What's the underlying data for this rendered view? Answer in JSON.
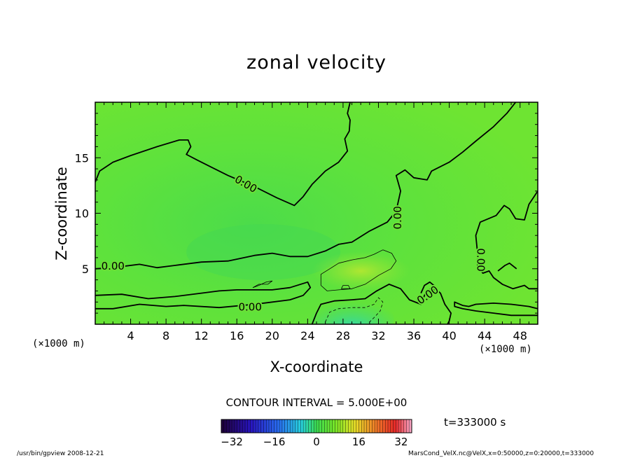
{
  "chart_data": {
    "type": "contour",
    "title": "zonal velocity",
    "xlabel": "X-coordinate",
    "ylabel": "Z-coordinate",
    "x_unit": "(×1000 m)",
    "y_unit": "(×1000 m)",
    "xlim": [
      0,
      50
    ],
    "ylim": [
      0,
      20
    ],
    "xticks": [
      4,
      8,
      12,
      16,
      20,
      24,
      28,
      32,
      36,
      40,
      44,
      48
    ],
    "yticks": [
      5,
      10,
      15
    ],
    "contour_interval_label": "CONTOUR INTERVAL = 5.000E+00",
    "contour_labels": [
      "0.00",
      "0.00",
      "0.00",
      "0.00",
      "0.00",
      "0.00"
    ],
    "contours": [
      {
        "level": 0,
        "points": [
          [
            0,
            12.8
          ],
          [
            0.5,
            13.8
          ],
          [
            2,
            14.6
          ],
          [
            4,
            15.2
          ],
          [
            7,
            16.0
          ],
          [
            9.5,
            16.6
          ],
          [
            10.5,
            16.6
          ],
          [
            10.8,
            16.0
          ],
          [
            10.3,
            15.3
          ],
          [
            11.5,
            14.8
          ],
          [
            13,
            14.2
          ],
          [
            15,
            13.4
          ],
          [
            18,
            12.4
          ],
          [
            20.5,
            11.4
          ],
          [
            22.5,
            10.7
          ],
          [
            23.5,
            11.5
          ],
          [
            24.5,
            12.6
          ],
          [
            26,
            13.8
          ],
          [
            27.5,
            14.6
          ],
          [
            28.5,
            15.6
          ],
          [
            28.2,
            16.7
          ],
          [
            28.7,
            17.4
          ],
          [
            28.8,
            18.4
          ],
          [
            28.5,
            19.0
          ],
          [
            28.8,
            20.0
          ]
        ]
      },
      {
        "level": 0,
        "points": [
          [
            0,
            5.0
          ],
          [
            2,
            5.1
          ],
          [
            5,
            5.4
          ],
          [
            7,
            5.1
          ],
          [
            9,
            5.3
          ],
          [
            12,
            5.6
          ],
          [
            15,
            5.7
          ],
          [
            18,
            6.2
          ],
          [
            20,
            6.4
          ],
          [
            22,
            6.1
          ],
          [
            24,
            6.1
          ],
          [
            26,
            6.6
          ],
          [
            27.5,
            7.2
          ],
          [
            29,
            7.4
          ],
          [
            31,
            8.4
          ],
          [
            33,
            9.2
          ],
          [
            34,
            10.2
          ],
          [
            34.5,
            12.0
          ],
          [
            34,
            13.4
          ],
          [
            35,
            13.9
          ],
          [
            36,
            13.2
          ],
          [
            37.5,
            13.0
          ],
          [
            38,
            13.8
          ],
          [
            40,
            14.6
          ],
          [
            41.5,
            15.5
          ],
          [
            43,
            16.5
          ],
          [
            45,
            17.8
          ],
          [
            46.5,
            19.0
          ],
          [
            47.5,
            20.0
          ]
        ]
      },
      {
        "level": 0,
        "points": [
          [
            50,
            12.0
          ],
          [
            49,
            10.8
          ],
          [
            48.5,
            9.4
          ],
          [
            47.5,
            9.5
          ],
          [
            46.8,
            10.4
          ],
          [
            46.2,
            10.7
          ],
          [
            45.3,
            9.8
          ],
          [
            43.5,
            9.2
          ],
          [
            43,
            8.0
          ],
          [
            43.2,
            6.4
          ],
          [
            43.2,
            5.2
          ],
          [
            43.8,
            4.6
          ],
          [
            44.5,
            4.8
          ],
          [
            45,
            4.2
          ],
          [
            46,
            3.6
          ],
          [
            47.2,
            3.2
          ],
          [
            48.5,
            3.5
          ],
          [
            49,
            3.2
          ],
          [
            50,
            3.2
          ]
        ]
      },
      {
        "level": 0,
        "points": [
          [
            0,
            2.6
          ],
          [
            3,
            2.7
          ],
          [
            6,
            2.3
          ],
          [
            9,
            2.5
          ],
          [
            12,
            2.8
          ],
          [
            14,
            3.0
          ],
          [
            16,
            3.1
          ],
          [
            20,
            3.1
          ],
          [
            22,
            3.3
          ],
          [
            24,
            3.8
          ],
          [
            24.3,
            3.3
          ],
          [
            23.5,
            2.6
          ],
          [
            22,
            2.2
          ],
          [
            18,
            1.8
          ],
          [
            14,
            1.5
          ],
          [
            10,
            1.7
          ],
          [
            8,
            1.6
          ],
          [
            5,
            1.8
          ],
          [
            2,
            1.4
          ],
          [
            0,
            1.4
          ]
        ]
      },
      {
        "level": 0,
        "points": [
          [
            24.5,
            0
          ],
          [
            25,
            1.0
          ],
          [
            25.5,
            1.8
          ],
          [
            27,
            2.1
          ],
          [
            29,
            2.2
          ],
          [
            30.5,
            2.3
          ],
          [
            31.8,
            3.0
          ],
          [
            33.2,
            3.6
          ],
          [
            34.5,
            3.2
          ],
          [
            35.5,
            2.2
          ],
          [
            36.8,
            1.8
          ],
          [
            37.3,
            2.8
          ],
          [
            38.2,
            3.4
          ],
          [
            39,
            2.8
          ],
          [
            39.5,
            1.8
          ],
          [
            40.2,
            1.0
          ],
          [
            40,
            0.3
          ],
          [
            39.8,
            0
          ]
        ]
      },
      {
        "level": 0,
        "points": [
          [
            50,
            1.4
          ],
          [
            49,
            1.6
          ],
          [
            47,
            1.8
          ],
          [
            45,
            1.9
          ],
          [
            43,
            1.8
          ],
          [
            42.2,
            1.6
          ],
          [
            41.5,
            1.7
          ],
          [
            40.6,
            2.0
          ],
          [
            40.6,
            1.6
          ],
          [
            41.5,
            1.4
          ],
          [
            43,
            1.2
          ],
          [
            45,
            1.0
          ],
          [
            47,
            0.8
          ],
          [
            50,
            0.8
          ]
        ]
      },
      {
        "level": 5,
        "points": [
          [
            25.5,
            3.5
          ],
          [
            25.5,
            4.5
          ],
          [
            26.5,
            5.0
          ],
          [
            27.5,
            5.5
          ],
          [
            29,
            5.8
          ],
          [
            30.5,
            6.0
          ],
          [
            31.5,
            6.3
          ],
          [
            32.5,
            6.7
          ],
          [
            33.5,
            6.4
          ],
          [
            34,
            5.7
          ],
          [
            33.4,
            5.0
          ],
          [
            32,
            4.4
          ],
          [
            30.5,
            3.6
          ],
          [
            29,
            3.2
          ],
          [
            27.5,
            3.1
          ],
          [
            26.2,
            3.0
          ],
          [
            25.5,
            3.5
          ]
        ]
      },
      {
        "level": 5,
        "points": [
          [
            17.8,
            3.3
          ],
          [
            18.5,
            3.6
          ],
          [
            19.5,
            3.6
          ],
          [
            20,
            3.9
          ],
          [
            19.3,
            3.8
          ],
          [
            18.5,
            3.5
          ],
          [
            17.8,
            3.3
          ]
        ]
      },
      {
        "level": 5,
        "points": [
          [
            27.8,
            3.2
          ],
          [
            28.0,
            3.5
          ],
          [
            28.6,
            3.5
          ],
          [
            28.8,
            3.2
          ],
          [
            27.8,
            3.2
          ]
        ]
      },
      {
        "level": -5,
        "points": [
          [
            26,
            0.2
          ],
          [
            26.5,
            1.1
          ],
          [
            27.5,
            1.4
          ],
          [
            29,
            1.5
          ],
          [
            30.5,
            1.5
          ],
          [
            31.5,
            1.8
          ],
          [
            32,
            2.4
          ],
          [
            32.5,
            2.0
          ],
          [
            32.2,
            1.2
          ],
          [
            31.5,
            0.6
          ],
          [
            31,
            0.2
          ]
        ]
      },
      {
        "level": 0,
        "points": [
          [
            36.8,
            2.8
          ],
          [
            37.2,
            3.5
          ],
          [
            37.8,
            3.8
          ],
          [
            38.4,
            3.4
          ],
          [
            38.2,
            2.9
          ]
        ]
      },
      {
        "level": 0,
        "points": [
          [
            45.5,
            4.8
          ],
          [
            46.3,
            5.3
          ],
          [
            46.8,
            5.5
          ],
          [
            47.6,
            5.0
          ]
        ]
      }
    ],
    "colorbar": {
      "ticks": [
        -32,
        -16,
        0,
        16,
        32
      ],
      "min": -36,
      "max": 36
    }
  },
  "time_label": "t=333000  s",
  "footer_left": "/usr/bin/gpview   2008-12-21",
  "footer_right": "MarsCond_VelX.nc@VelX,x=0:50000,z=0:20000,t=333000"
}
